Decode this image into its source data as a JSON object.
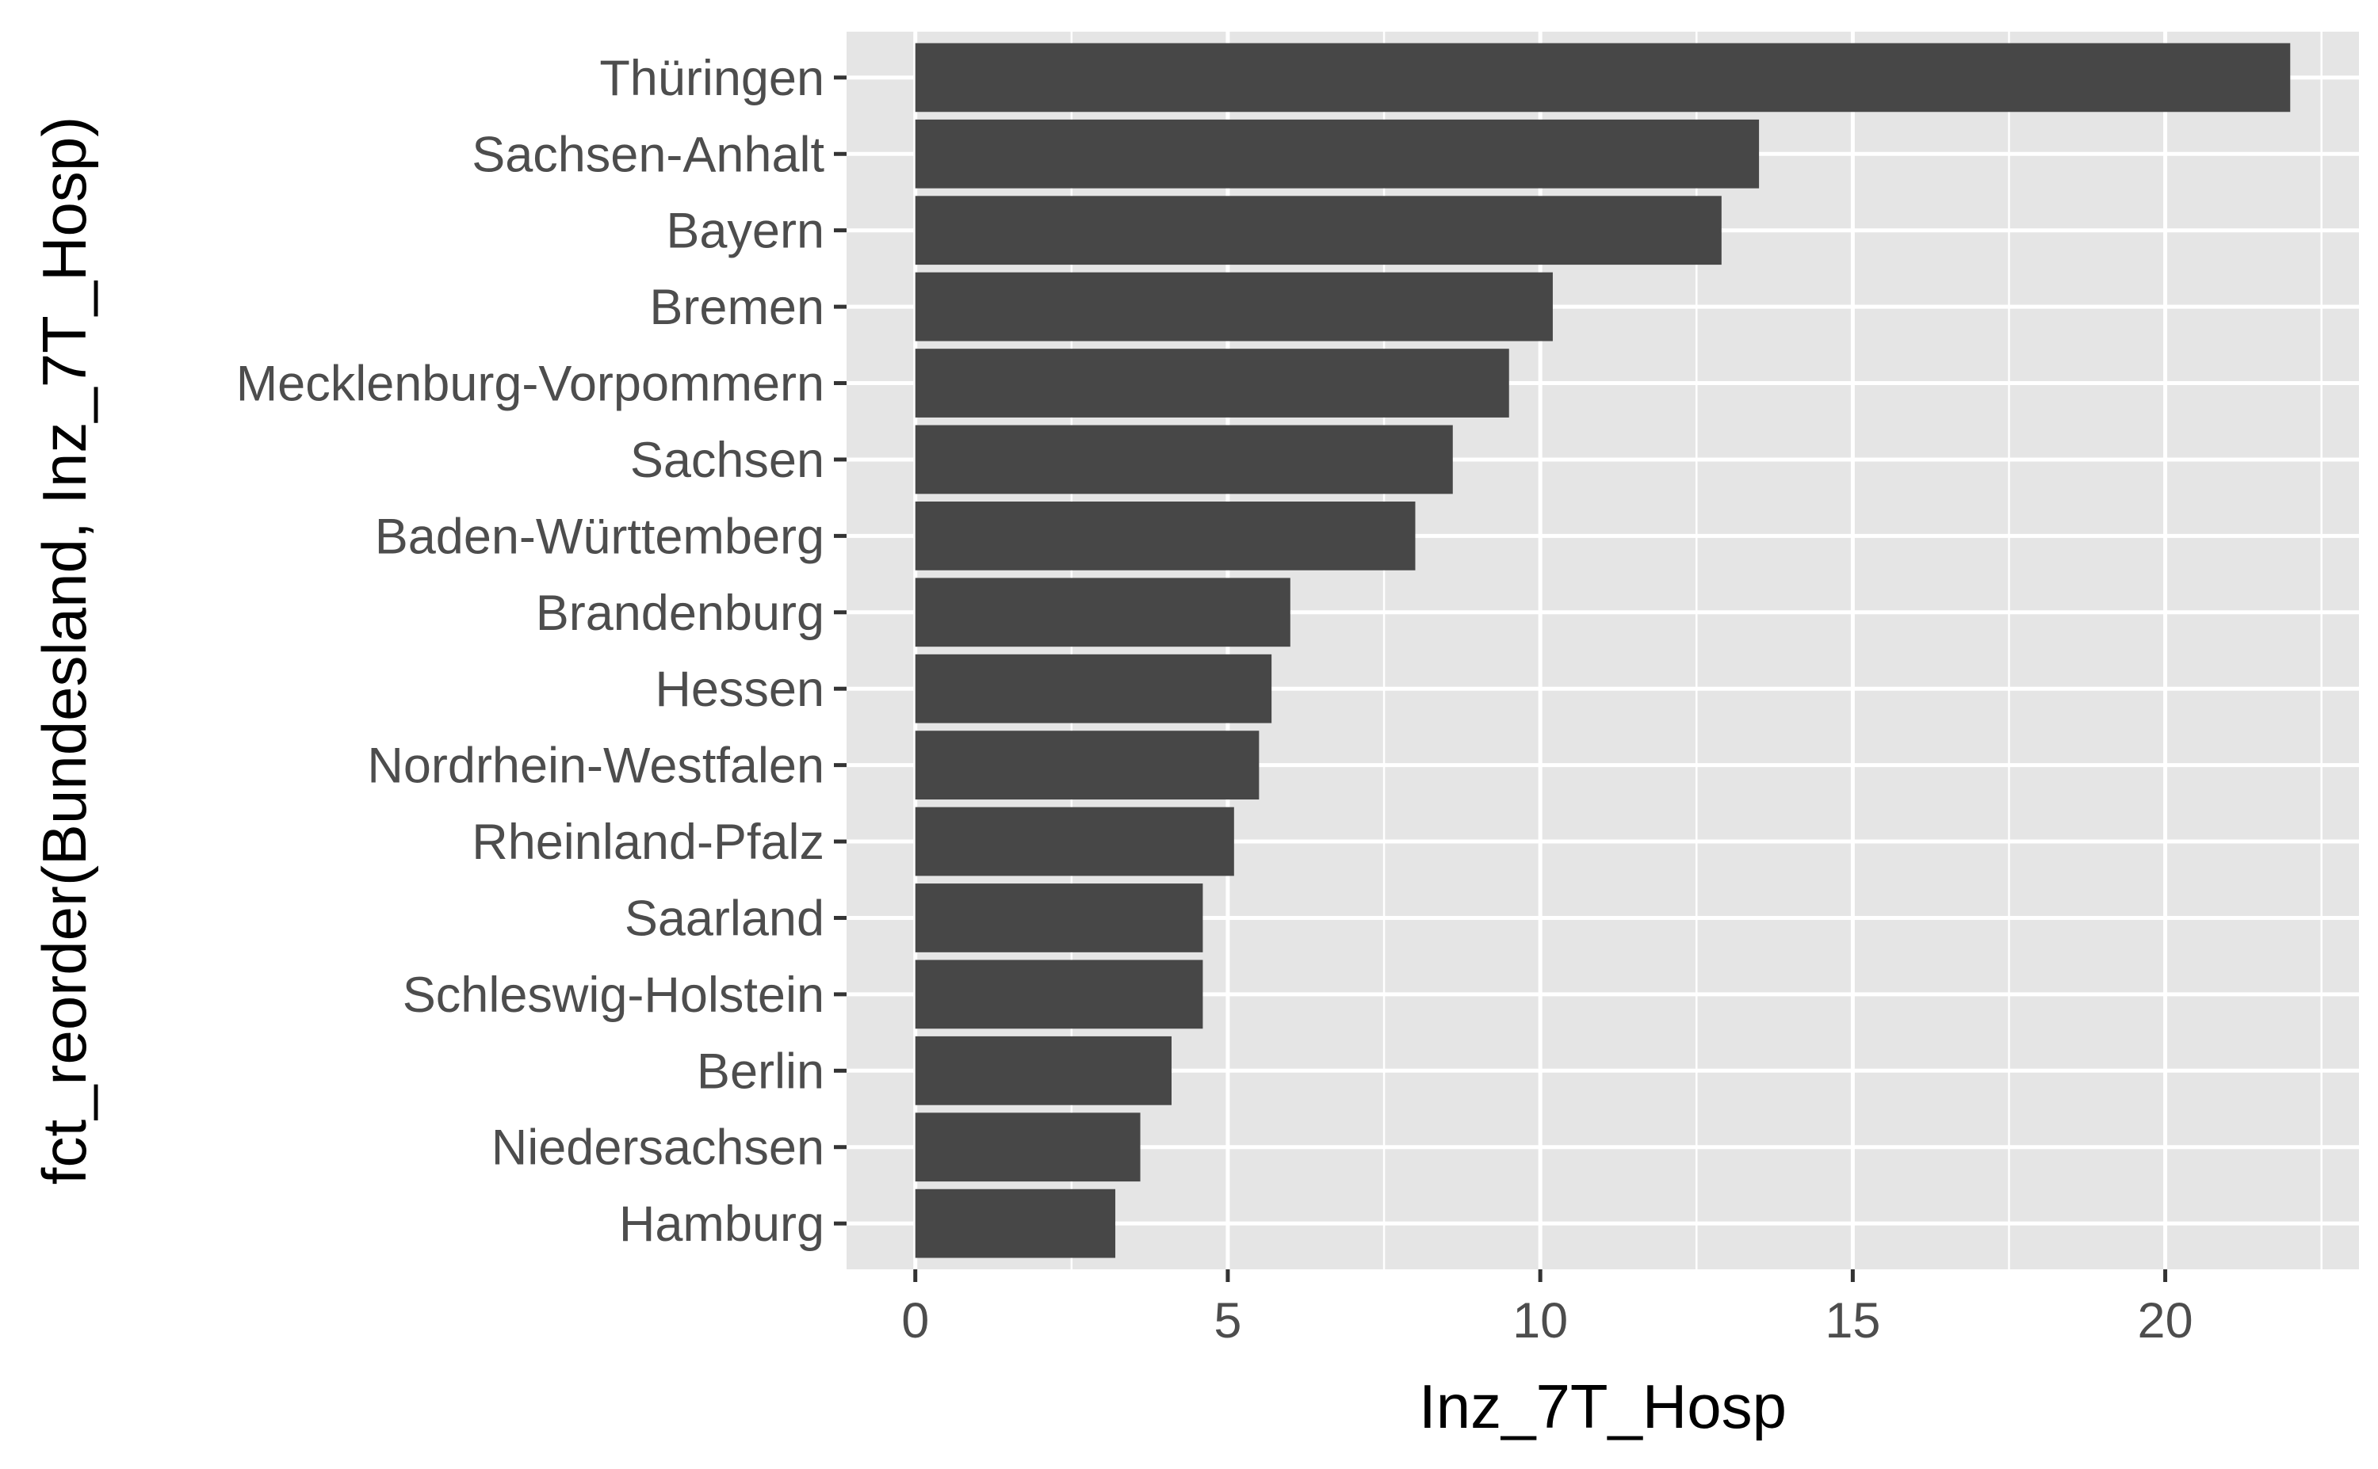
{
  "chart_data": {
    "type": "bar",
    "orientation": "horizontal",
    "xlabel": "Inz_7T_Hosp",
    "ylabel": "fct_reorder(Bundesland, Inz_7T_Hosp)",
    "categories": [
      "Thüringen",
      "Sachsen-Anhalt",
      "Bayern",
      "Bremen",
      "Mecklenburg-Vorpommern",
      "Sachsen",
      "Baden-Württemberg",
      "Brandenburg",
      "Hessen",
      "Nordrhein-Westfalen",
      "Rheinland-Pfalz",
      "Saarland",
      "Schleswig-Holstein",
      "Berlin",
      "Niedersachsen",
      "Hamburg"
    ],
    "values": [
      22.0,
      13.5,
      12.9,
      10.2,
      9.5,
      8.6,
      8.0,
      6.0,
      5.7,
      5.5,
      5.1,
      4.6,
      4.6,
      4.1,
      3.6,
      3.2
    ],
    "xlim": [
      -1.1,
      23.1
    ],
    "x_ticks": [
      0,
      5,
      10,
      15,
      20
    ],
    "x_tick_labels": [
      "0",
      "5",
      "10",
      "15",
      "20"
    ],
    "grid": true,
    "legend": "none",
    "colors": {
      "bar": "#474747",
      "panel": "#e5e5e5",
      "grid": "#ffffff",
      "tick_text": "#4d4d4d",
      "tick_mark": "#333333"
    }
  }
}
